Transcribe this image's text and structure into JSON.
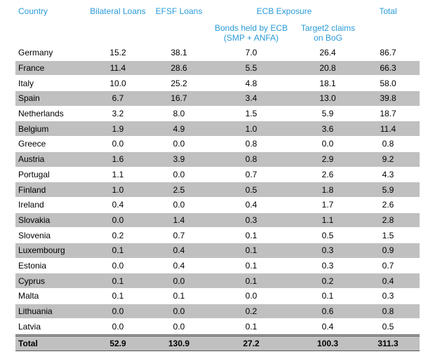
{
  "headers": {
    "country": "Country",
    "bilateral": "Bilateral Loans",
    "efsf": "EFSF Loans",
    "ecb": "ECB Exposure",
    "bonds_line1": "Bonds held by ECB",
    "bonds_line2": "(SMP + ANFA)",
    "target2_line1": "Target2 claims",
    "target2_line2": "on BoG",
    "total": "Total"
  },
  "rows": [
    {
      "country": "Germany",
      "bilateral": "15.2",
      "efsf": "38.1",
      "bonds": "7.0",
      "target2": "26.4",
      "total": "86.7"
    },
    {
      "country": "France",
      "bilateral": "11.4",
      "efsf": "28.6",
      "bonds": "5.5",
      "target2": "20.8",
      "total": "66.3"
    },
    {
      "country": "Italy",
      "bilateral": "10.0",
      "efsf": "25.2",
      "bonds": "4.8",
      "target2": "18.1",
      "total": "58.0"
    },
    {
      "country": "Spain",
      "bilateral": "6.7",
      "efsf": "16.7",
      "bonds": "3.4",
      "target2": "13.0",
      "total": "39.8"
    },
    {
      "country": "Netherlands",
      "bilateral": "3.2",
      "efsf": "8.0",
      "bonds": "1.5",
      "target2": "5.9",
      "total": "18.7"
    },
    {
      "country": "Belgium",
      "bilateral": "1.9",
      "efsf": "4.9",
      "bonds": "1.0",
      "target2": "3.6",
      "total": "11.4"
    },
    {
      "country": "Greece",
      "bilateral": "0.0",
      "efsf": "0.0",
      "bonds": "0.8",
      "target2": "0.0",
      "total": "0.8"
    },
    {
      "country": "Austria",
      "bilateral": "1.6",
      "efsf": "3.9",
      "bonds": "0.8",
      "target2": "2.9",
      "total": "9.2"
    },
    {
      "country": "Portugal",
      "bilateral": "1.1",
      "efsf": "0.0",
      "bonds": "0.7",
      "target2": "2.6",
      "total": "4.3"
    },
    {
      "country": "Finland",
      "bilateral": "1.0",
      "efsf": "2.5",
      "bonds": "0.5",
      "target2": "1.8",
      "total": "5.9"
    },
    {
      "country": "Ireland",
      "bilateral": "0.4",
      "efsf": "0.0",
      "bonds": "0.4",
      "target2": "1.7",
      "total": "2.6"
    },
    {
      "country": "Slovakia",
      "bilateral": "0.0",
      "efsf": "1.4",
      "bonds": "0.3",
      "target2": "1.1",
      "total": "2.8"
    },
    {
      "country": "Slovenia",
      "bilateral": "0.2",
      "efsf": "0.7",
      "bonds": "0.1",
      "target2": "0.5",
      "total": "1.5"
    },
    {
      "country": "Luxembourg",
      "bilateral": "0.1",
      "efsf": "0.4",
      "bonds": "0.1",
      "target2": "0.3",
      "total": "0.9"
    },
    {
      "country": "Estonia",
      "bilateral": "0.0",
      "efsf": "0.4",
      "bonds": "0.1",
      "target2": "0.3",
      "total": "0.7"
    },
    {
      "country": "Cyprus",
      "bilateral": "0.1",
      "efsf": "0.0",
      "bonds": "0.1",
      "target2": "0.2",
      "total": "0.4"
    },
    {
      "country": "Malta",
      "bilateral": "0.1",
      "efsf": "0.1",
      "bonds": "0.0",
      "target2": "0.1",
      "total": "0.3"
    },
    {
      "country": "Lithuania",
      "bilateral": "0.0",
      "efsf": "0.0",
      "bonds": "0.2",
      "target2": "0.6",
      "total": "0.8"
    },
    {
      "country": "Latvia",
      "bilateral": "0.0",
      "efsf": "0.0",
      "bonds": "0.1",
      "target2": "0.4",
      "total": "0.5"
    }
  ],
  "total_row": {
    "country": "Total",
    "bilateral": "52.9",
    "efsf": "130.9",
    "bonds": "27.2",
    "target2": "100.3",
    "total": "311.3"
  },
  "colors": {
    "header": "#2a9bd8",
    "shade": "#c0c0c0"
  }
}
